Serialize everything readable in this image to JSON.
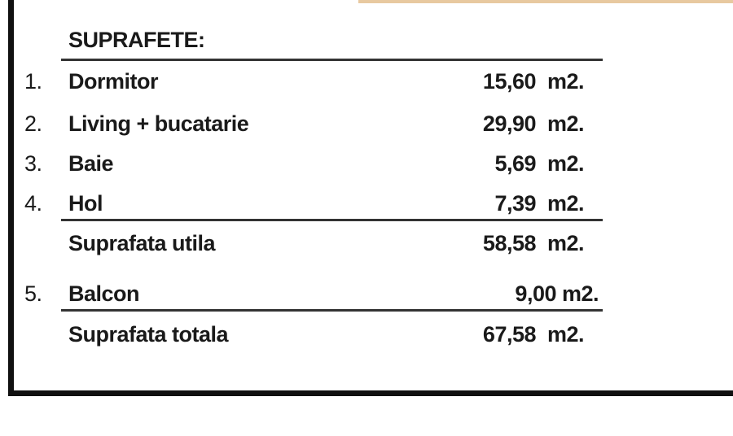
{
  "title": "SUPRAFETE:",
  "rows": [
    {
      "index": "1.",
      "label": "Dormitor",
      "value": "15,60",
      "unit": "m2."
    },
    {
      "index": "2.",
      "label": "Living + bucatarie",
      "value": "29,90",
      "unit": "m2."
    },
    {
      "index": "3.",
      "label": "Baie",
      "value": "5,69",
      "unit": "m2."
    },
    {
      "index": "4.",
      "label": "Hol",
      "value": "7,39",
      "unit": "m2."
    }
  ],
  "subtotal": {
    "label": "Suprafata utila",
    "value": "58,58",
    "unit": "m2."
  },
  "balcon": {
    "index": "5.",
    "label": "Balcon",
    "value": "9,00 m2."
  },
  "total": {
    "label": "Suprafata totala",
    "value": "67,58",
    "unit": "m2."
  }
}
